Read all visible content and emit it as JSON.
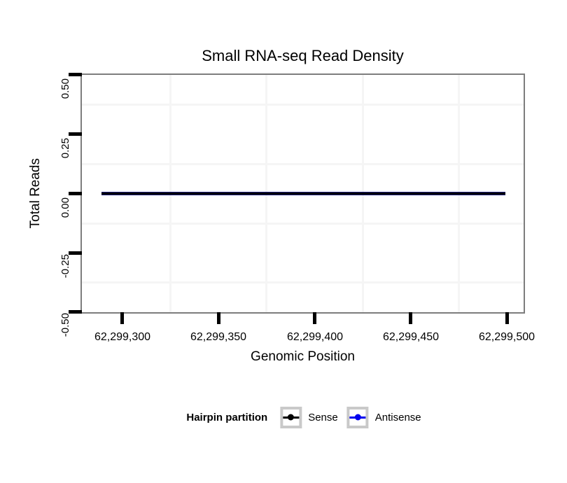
{
  "title": "Small RNA-seq Read Density",
  "axes": {
    "x": {
      "label": "Genomic Position",
      "ticks": [
        "62,299,300",
        "62,299,350",
        "62,299,400",
        "62,299,450",
        "62,299,500"
      ]
    },
    "y": {
      "label": "Total Reads",
      "ticks": [
        "0.50",
        "0.25",
        "0.00",
        "-0.25",
        "-0.50"
      ]
    }
  },
  "legend": {
    "title": "Hairpin partition",
    "items": [
      {
        "label": "Sense",
        "color": "#000000"
      },
      {
        "label": "Antisense",
        "color": "#0000EE"
      }
    ]
  },
  "colors": {
    "panel_border": "#7d7d7d",
    "grid_minor": "#f5f5f5",
    "tick": "#000000",
    "legend_key_border": "#c9c9c9",
    "line_overlap_fringe": "#20207c",
    "background": "#ffffff"
  },
  "chart_data": {
    "type": "line",
    "title": "Small RNA-seq Read Density",
    "xlabel": "Genomic Position",
    "ylabel": "Total Reads",
    "xlim": [
      62299279,
      62299509
    ],
    "ylim": [
      -0.5,
      0.5
    ],
    "x_ticks": [
      62299300,
      62299350,
      62299400,
      62299450,
      62299500
    ],
    "y_ticks": [
      0.5,
      0.25,
      0.0,
      -0.25,
      -0.5
    ],
    "series": [
      {
        "name": "Sense",
        "color": "#000000",
        "x": [
          62299289,
          62299499
        ],
        "values": [
          0,
          0
        ]
      },
      {
        "name": "Antisense",
        "color": "#0000EE",
        "x": [
          62299289,
          62299499
        ],
        "values": [
          0,
          0
        ]
      }
    ],
    "grid": "minor gridlines only (midpoints between ticks), light gray on white",
    "legend_position": "bottom",
    "legend_title": "Hairpin partition"
  }
}
